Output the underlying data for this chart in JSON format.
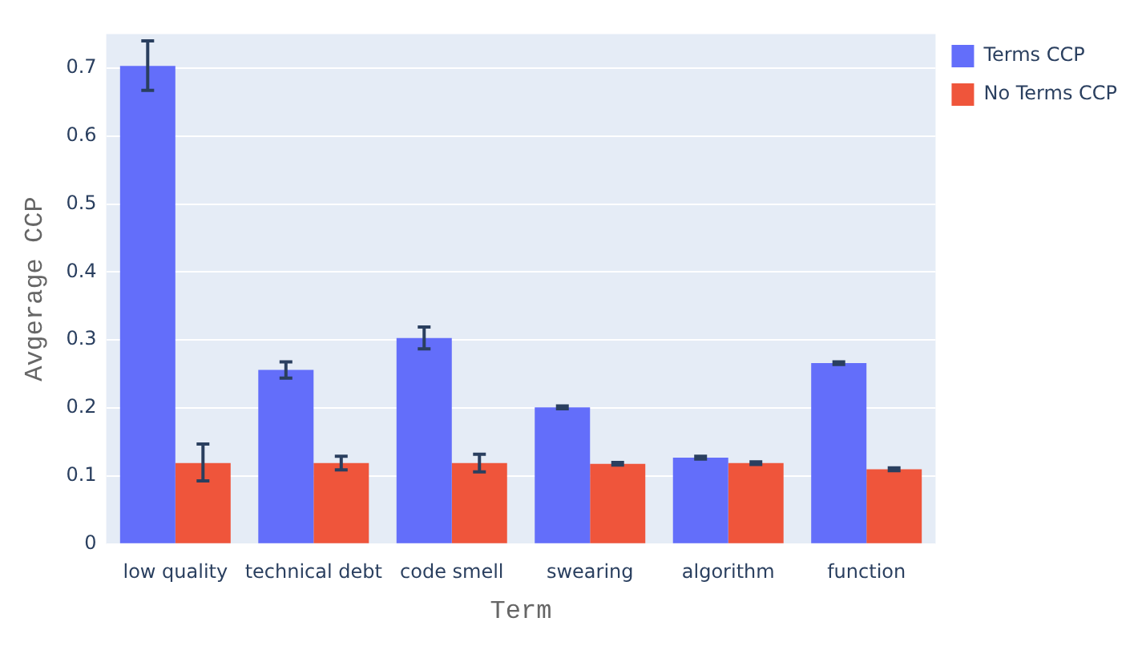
{
  "chart_data": {
    "type": "bar",
    "xlabel": "Term",
    "ylabel": "Avgerage CCP",
    "categories": [
      "low quality",
      "technical debt",
      "code smell",
      "swearing",
      "algorithm",
      "function"
    ],
    "series": [
      {
        "name": "Terms CCP",
        "color": "#636efa",
        "values": [
          0.703,
          0.256,
          0.303,
          0.201,
          0.127,
          0.266
        ],
        "errors": [
          [
            0.667,
            0.74
          ],
          0.012,
          0.016,
          0.002,
          0.002,
          0.002
        ]
      },
      {
        "name": "No Terms CCP",
        "color": "#ef553b",
        "values": [
          0.119,
          0.119,
          0.119,
          0.118,
          0.119,
          0.11
        ],
        "errors": [
          [
            0.093,
            0.147
          ],
          0.01,
          0.013,
          0.002,
          0.002,
          0.002
        ]
      }
    ],
    "ylim": [
      0,
      0.75
    ],
    "yticks": [
      0,
      0.1,
      0.2,
      0.3,
      0.4,
      0.5,
      0.6,
      0.7
    ],
    "grid": "y",
    "legend": "top right"
  }
}
